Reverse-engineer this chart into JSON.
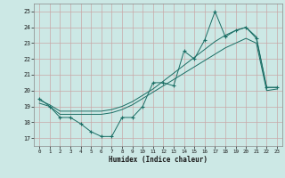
{
  "xlabel": "Humidex (Indice chaleur)",
  "background_color": "#cce8e5",
  "grid_color": "#c8a8a8",
  "line_color": "#1a6e65",
  "xlim": [
    -0.5,
    23.5
  ],
  "ylim": [
    16.5,
    25.5
  ],
  "yticks": [
    17,
    18,
    19,
    20,
    21,
    22,
    23,
    24,
    25
  ],
  "xticks": [
    0,
    1,
    2,
    3,
    4,
    5,
    6,
    7,
    8,
    9,
    10,
    11,
    12,
    13,
    14,
    15,
    16,
    17,
    18,
    19,
    20,
    21,
    22,
    23
  ],
  "line1_x": [
    0,
    1,
    2,
    3,
    4,
    5,
    6,
    7,
    8,
    9,
    10,
    11,
    12,
    13,
    14,
    15,
    16,
    17,
    18,
    19,
    20,
    21,
    22,
    23
  ],
  "line1_y": [
    19.5,
    19.0,
    18.3,
    18.3,
    17.9,
    17.4,
    17.1,
    17.1,
    18.3,
    18.3,
    19.0,
    20.5,
    20.5,
    20.3,
    22.5,
    22.0,
    23.2,
    25.0,
    23.4,
    23.8,
    24.0,
    23.3,
    20.2,
    20.2
  ],
  "line2_x": [
    0,
    1,
    2,
    3,
    4,
    5,
    6,
    7,
    8,
    9,
    10,
    11,
    12,
    13,
    14,
    15,
    16,
    17,
    18,
    19,
    20,
    21,
    22,
    23
  ],
  "line2_y": [
    19.4,
    19.1,
    18.7,
    18.7,
    18.7,
    18.7,
    18.7,
    18.8,
    19.0,
    19.3,
    19.7,
    20.1,
    20.6,
    21.1,
    21.6,
    22.1,
    22.6,
    23.1,
    23.5,
    23.8,
    24.0,
    23.4,
    20.2,
    20.2
  ],
  "line3_x": [
    0,
    1,
    2,
    3,
    4,
    5,
    6,
    7,
    8,
    9,
    10,
    11,
    12,
    13,
    14,
    15,
    16,
    17,
    18,
    19,
    20,
    21,
    22,
    23
  ],
  "line3_y": [
    19.2,
    19.0,
    18.5,
    18.5,
    18.5,
    18.5,
    18.5,
    18.6,
    18.8,
    19.1,
    19.5,
    19.9,
    20.3,
    20.7,
    21.1,
    21.5,
    21.9,
    22.3,
    22.7,
    23.0,
    23.3,
    23.0,
    20.0,
    20.1
  ]
}
